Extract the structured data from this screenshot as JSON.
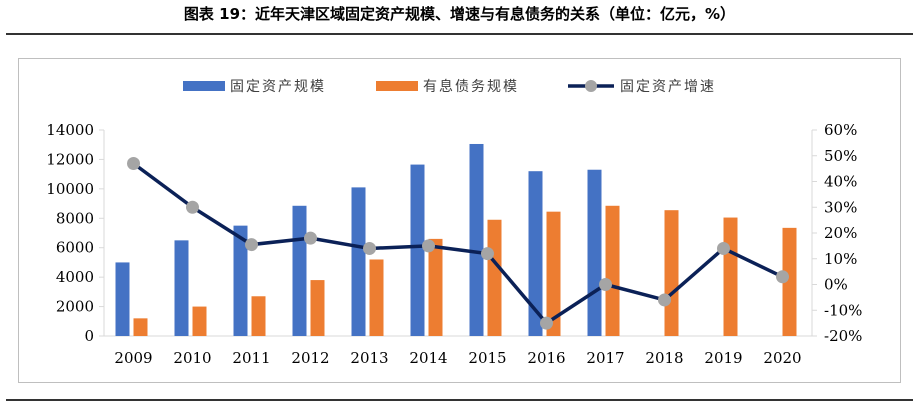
{
  "title": "图表 19：近年天津区域固定资产规模、增速与有息债务的关系（单位：亿元，%）",
  "colors": {
    "fixed_assets": "#4472C4",
    "debt": "#ED7D31",
    "growth_line": "#0B2157",
    "growth_marker": "#A5A5A5"
  },
  "chart_data": {
    "type": "bar",
    "categories": [
      "2009",
      "2010",
      "2011",
      "2012",
      "2013",
      "2014",
      "2015",
      "2016",
      "2017",
      "2018",
      "2019",
      "2020"
    ],
    "series": [
      {
        "name": "固定资产规模",
        "axis": "left",
        "values": [
          5000,
          6500,
          7500,
          8850,
          10100,
          11650,
          13050,
          11200,
          11300,
          null,
          null,
          null
        ]
      },
      {
        "name": "有息债务规模",
        "axis": "left",
        "values": [
          1200,
          2000,
          2700,
          3800,
          5200,
          6600,
          7900,
          8450,
          8850,
          8550,
          8050,
          7350
        ]
      },
      {
        "name": "固定资产增速",
        "axis": "right",
        "type": "line",
        "values": [
          47,
          30,
          15.5,
          18,
          14,
          15,
          12,
          -15,
          0,
          -6,
          14,
          3
        ]
      }
    ],
    "ylim": [
      0,
      14000
    ],
    "yticks": [
      "0",
      "2000",
      "4000",
      "6000",
      "8000",
      "10000",
      "12000",
      "14000"
    ],
    "y2lim": [
      -20,
      60
    ],
    "y2ticks": [
      "-20%",
      "-10%",
      "0%",
      "10%",
      "20%",
      "30%",
      "40%",
      "50%",
      "60%"
    ],
    "legend_position": "top-center",
    "grid": false
  }
}
